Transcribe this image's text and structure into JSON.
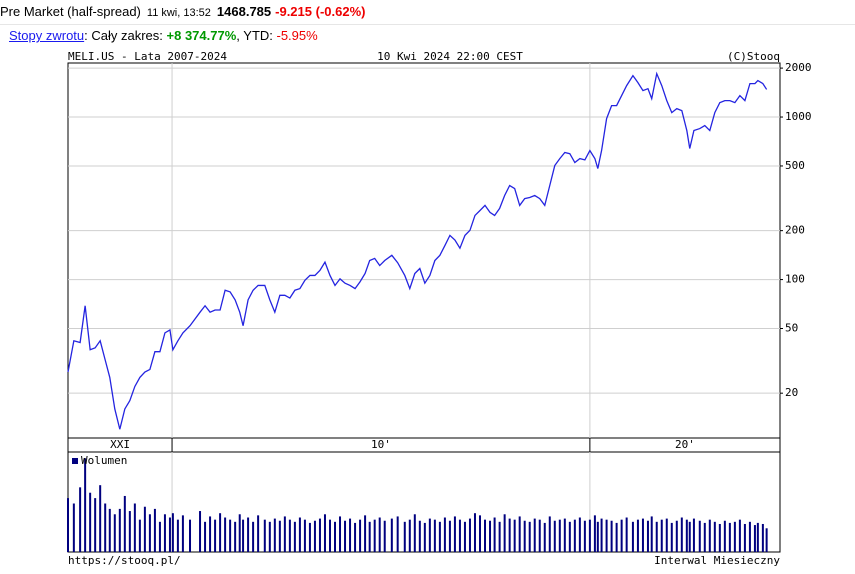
{
  "header": {
    "label": "Pre Market (half-spread)",
    "time": "11 kwi, 13:52",
    "price": "1468.785",
    "change": "-9.215 (-0.62%)"
  },
  "returns": {
    "link": "Stopy zwrotu",
    "range_label": ": Cały zakres: ",
    "range_value": "+8 374.77%",
    "ytd_label": ", YTD: ",
    "ytd_value": "-5.95%"
  },
  "chart_data": {
    "type": "line",
    "title": "MELI.US - Lata 2007-2024",
    "date": "10 Kwi 2024 22:00 CEST",
    "credit": "(C)Stooq",
    "source": "https://stooq.pl/",
    "interval": "Interwal Miesieczny",
    "log_scale": true,
    "color": "#2424e0",
    "ylim": [
      10.6,
      2150
    ],
    "yticks": [
      20,
      50,
      100,
      200,
      500,
      1000,
      2000
    ],
    "grid": true,
    "xlim": [
      2007.51,
      2024.55
    ],
    "x_grid": [
      2010,
      2020
    ],
    "x_sections": [
      "XXI",
      "10'",
      "20'"
    ],
    "x": [
      2007.51,
      2007.65,
      2007.8,
      2007.92,
      2008.04,
      2008.16,
      2008.28,
      2008.4,
      2008.51,
      2008.63,
      2008.75,
      2008.87,
      2008.99,
      2009.11,
      2009.23,
      2009.35,
      2009.47,
      2009.59,
      2009.71,
      2009.83,
      2009.95,
      2010.02,
      2010.14,
      2010.26,
      2010.43,
      2010.67,
      2010.79,
      2010.91,
      2011.03,
      2011.15,
      2011.27,
      2011.39,
      2011.51,
      2011.62,
      2011.7,
      2011.82,
      2011.94,
      2012.06,
      2012.22,
      2012.34,
      2012.46,
      2012.58,
      2012.7,
      2012.82,
      2012.94,
      2013.06,
      2013.18,
      2013.3,
      2013.42,
      2013.54,
      2013.66,
      2013.78,
      2013.9,
      2014.02,
      2014.14,
      2014.26,
      2014.38,
      2014.5,
      2014.62,
      2014.73,
      2014.85,
      2014.97,
      2015.09,
      2015.26,
      2015.4,
      2015.57,
      2015.69,
      2015.81,
      2015.93,
      2016.05,
      2016.17,
      2016.29,
      2016.41,
      2016.53,
      2016.65,
      2016.77,
      2016.89,
      2017.01,
      2017.13,
      2017.25,
      2017.37,
      2017.49,
      2017.61,
      2017.72,
      2017.84,
      2017.96,
      2018.08,
      2018.2,
      2018.32,
      2018.44,
      2018.56,
      2018.68,
      2018.8,
      2018.92,
      2019.04,
      2019.16,
      2019.28,
      2019.4,
      2019.52,
      2019.64,
      2019.76,
      2019.88,
      2020.0,
      2020.12,
      2020.19,
      2020.28,
      2020.4,
      2020.52,
      2020.64,
      2020.76,
      2020.88,
      2021.03,
      2021.15,
      2021.27,
      2021.39,
      2021.48,
      2021.6,
      2021.72,
      2021.84,
      2021.96,
      2022.08,
      2022.2,
      2022.32,
      2022.39,
      2022.49,
      2022.63,
      2022.75,
      2022.87,
      2022.99,
      2023.11,
      2023.23,
      2023.35,
      2023.47,
      2023.59,
      2023.71,
      2023.83,
      2023.95,
      2024.02,
      2024.14,
      2024.23
    ],
    "values": [
      27,
      42,
      41,
      69,
      37,
      38,
      42,
      32,
      25,
      16,
      12,
      16,
      18,
      22,
      25,
      27,
      28,
      36,
      36,
      47,
      49,
      37,
      42,
      47,
      52,
      63,
      69,
      63,
      65,
      65,
      86,
      84,
      75,
      63,
      52,
      75,
      86,
      92,
      92,
      75,
      63,
      80,
      80,
      77,
      86,
      88,
      99,
      106,
      106,
      114,
      128,
      106,
      92,
      101,
      95,
      92,
      88,
      97,
      109,
      131,
      135,
      122,
      131,
      141,
      127,
      106,
      88,
      109,
      117,
      95,
      106,
      131,
      141,
      162,
      187,
      175,
      156,
      187,
      201,
      248,
      266,
      286,
      259,
      248,
      274,
      329,
      379,
      363,
      286,
      315,
      320,
      329,
      315,
      286,
      379,
      503,
      555,
      605,
      595,
      525,
      555,
      545,
      622,
      555,
      482,
      622,
      978,
      1176,
      1176,
      1355,
      1561,
      1798,
      1628,
      1454,
      1494,
      1298,
      1849,
      1561,
      1262,
      1065,
      1127,
      1095,
      826,
      640,
      826,
      849,
      886,
      826,
      1065,
      1227,
      1262,
      1262,
      1227,
      1355,
      1262,
      1606,
      1606,
      1676,
      1606,
      1478
    ],
    "volume": {
      "name": "Wolumen",
      "color": "#00007f",
      "ylim": [
        0,
        90
      ],
      "values": [
        50,
        45,
        60,
        87,
        55,
        50,
        62,
        45,
        40,
        35,
        40,
        52,
        38,
        45,
        30,
        42,
        35,
        40,
        28,
        35,
        32,
        36,
        30,
        34,
        30,
        38,
        28,
        33,
        30,
        36,
        32,
        30,
        28,
        35,
        30,
        32,
        28,
        34,
        30,
        28,
        31,
        29,
        33,
        30,
        28,
        32,
        30,
        27,
        29,
        31,
        35,
        30,
        28,
        33,
        29,
        31,
        27,
        30,
        34,
        28,
        30,
        32,
        29,
        31,
        33,
        28,
        30,
        35,
        29,
        27,
        31,
        30,
        28,
        32,
        29,
        33,
        30,
        28,
        31,
        36,
        34,
        30,
        29,
        32,
        28,
        35,
        31,
        30,
        33,
        29,
        28,
        31,
        30,
        27,
        33,
        29,
        30,
        31,
        28,
        30,
        32,
        29,
        30,
        34,
        28,
        31,
        30,
        29,
        27,
        30,
        32,
        28,
        30,
        31,
        29,
        33,
        28,
        30,
        31,
        27,
        29,
        32,
        30,
        28,
        31,
        29,
        27,
        30,
        28,
        26,
        29,
        27,
        28,
        30,
        26,
        28,
        25,
        27,
        26,
        22
      ]
    }
  }
}
